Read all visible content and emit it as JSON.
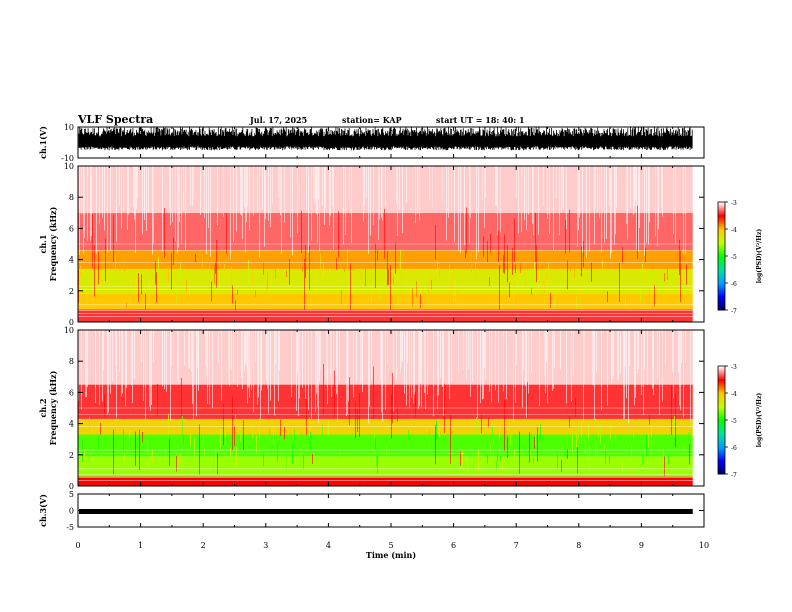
{
  "header": {
    "title": "VLF Spectra",
    "date": "Jul. 17, 2025",
    "station": "station= KAP",
    "start": "start  UT =   18: 40: 1"
  },
  "chart_data": {
    "type": "heatmap",
    "title": "VLF Spectra",
    "xlabel": "Time (min)",
    "xlim": [
      0,
      10
    ],
    "x_ticks": [
      "0",
      "1",
      "2",
      "3",
      "4",
      "5",
      "6",
      "7",
      "8",
      "9",
      "10"
    ],
    "data_end_min": 9.82,
    "waveform_top": {
      "ylabel": "ch.1(V)",
      "ylim": [
        -10,
        10
      ],
      "y_ticks": [
        "10",
        "-10"
      ],
      "description_level": "dense noise between about -5 and 10 V"
    },
    "spectrogram_1": {
      "ylabel": "ch.1\nFrequency (kHz)",
      "ylim": [
        0,
        10
      ],
      "y_ticks": [
        "0",
        "2",
        "4",
        "6",
        "8",
        "10"
      ],
      "bands": [
        {
          "from_khz": 0.0,
          "to_khz": 0.8,
          "level": -3.4
        },
        {
          "from_khz": 0.8,
          "to_khz": 1.8,
          "level": -4.0
        },
        {
          "from_khz": 1.8,
          "to_khz": 2.1,
          "level": -4.3
        },
        {
          "from_khz": 2.1,
          "to_khz": 3.4,
          "level": -4.3
        },
        {
          "from_khz": 3.4,
          "to_khz": 4.6,
          "level": -3.9
        },
        {
          "from_khz": 4.6,
          "to_khz": 7.0,
          "level": -3.3
        },
        {
          "from_khz": 7.0,
          "to_khz": 10.0,
          "level": -3.1
        }
      ]
    },
    "spectrogram_2": {
      "ylabel": "ch.2\nFrequency (kHz)",
      "ylim": [
        0,
        10
      ],
      "y_ticks": [
        "0",
        "2",
        "4",
        "6",
        "8",
        "10"
      ],
      "bands": [
        {
          "from_khz": 0.0,
          "to_khz": 0.6,
          "level": -3.5
        },
        {
          "from_khz": 0.6,
          "to_khz": 1.9,
          "level": -4.6
        },
        {
          "from_khz": 1.9,
          "to_khz": 3.3,
          "level": -4.8
        },
        {
          "from_khz": 3.3,
          "to_khz": 4.3,
          "level": -4.1
        },
        {
          "from_khz": 4.3,
          "to_khz": 6.5,
          "level": -3.4
        },
        {
          "from_khz": 6.5,
          "to_khz": 10.0,
          "level": -3.1
        }
      ]
    },
    "waveform_bottom": {
      "ylabel": "ch.3(V)",
      "ylim": [
        -5,
        5
      ],
      "y_ticks": [
        "5",
        "0",
        "-5"
      ],
      "level_v": -0.3
    },
    "colorbar": {
      "label": "log(PSD)(V²/Hz)",
      "range": [
        -7,
        -3
      ],
      "ticks": [
        "-3",
        "-4",
        "-5",
        "-6",
        "-7"
      ],
      "stops": [
        {
          "v": -7.0,
          "color": "#000060"
        },
        {
          "v": -6.5,
          "color": "#0000ff"
        },
        {
          "v": -6.0,
          "color": "#00a0ff"
        },
        {
          "v": -5.5,
          "color": "#00e0a0"
        },
        {
          "v": -5.0,
          "color": "#00ff00"
        },
        {
          "v": -4.5,
          "color": "#c0ff00"
        },
        {
          "v": -4.0,
          "color": "#ffc800"
        },
        {
          "v": -3.5,
          "color": "#ff0000"
        },
        {
          "v": -3.0,
          "color": "#ffffff"
        }
      ]
    }
  }
}
